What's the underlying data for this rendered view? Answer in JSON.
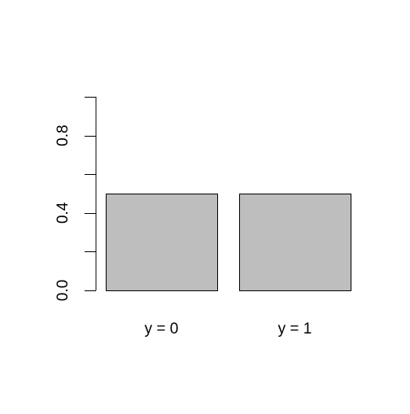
{
  "chart_data": {
    "type": "bar",
    "categories": [
      "y = 0",
      "y = 1"
    ],
    "values": [
      0.5,
      0.5
    ],
    "ylim": [
      0,
      1
    ],
    "y_ticks": [
      0.0,
      0.2,
      0.4,
      0.6,
      0.8,
      1.0
    ],
    "y_tick_labels": [
      {
        "value": 0.0,
        "label": "0.0"
      },
      {
        "value": 0.4,
        "label": "0.4"
      },
      {
        "value": 0.8,
        "label": "0.8"
      }
    ],
    "bar_color": "#bebebe",
    "bar_border_color": "#000000",
    "axis_color": "#000000",
    "grid": false,
    "legend": "none"
  }
}
